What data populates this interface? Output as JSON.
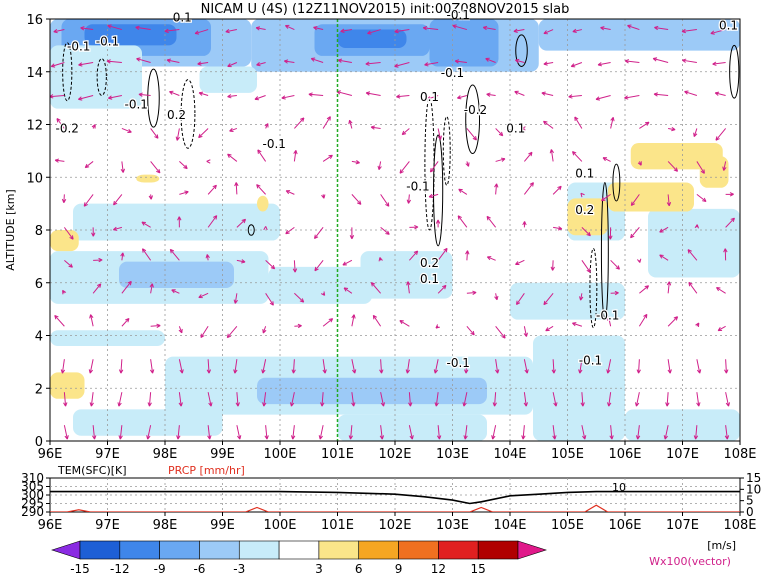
{
  "title": "NICAM U (4S) (12Z11NOV2015) init:00Z08NOV2015 slab",
  "chart_data": [
    {
      "type": "heatmap",
      "title": "NICAM U (4S) (12Z11NOV2015) init:00Z08NOV2015 slab",
      "xlabel": "",
      "ylabel": "ALTITUDE [km]",
      "x_ticks": [
        "96E",
        "97E",
        "98E",
        "99E",
        "100E",
        "101E",
        "102E",
        "103E",
        "104E",
        "105E",
        "106E",
        "107E",
        "108E"
      ],
      "y_ticks": [
        "0",
        "2",
        "4",
        "6",
        "8",
        "10",
        "12",
        "14",
        "16"
      ],
      "xlim": [
        96,
        108
      ],
      "ylim": [
        0,
        16
      ],
      "grid": true,
      "marker_line_lon": 101,
      "contour_labels": [
        {
          "lon": 96.5,
          "alt": 14.8,
          "text": "-0.1"
        },
        {
          "lon": 97.0,
          "alt": 15.0,
          "text": "-0.1"
        },
        {
          "lon": 96.3,
          "alt": 11.7,
          "text": "-0.2"
        },
        {
          "lon": 97.5,
          "alt": 12.6,
          "text": "-0.1"
        },
        {
          "lon": 98.2,
          "alt": 12.2,
          "text": "0.2"
        },
        {
          "lon": 99.9,
          "alt": 11.1,
          "text": "-0.1"
        },
        {
          "lon": 98.3,
          "alt": 15.9,
          "text": "0.1"
        },
        {
          "lon": 102.4,
          "alt": 9.5,
          "text": "-0.1"
        },
        {
          "lon": 103.0,
          "alt": 13.8,
          "text": "-0.1"
        },
        {
          "lon": 102.6,
          "alt": 12.9,
          "text": "0.1"
        },
        {
          "lon": 103.4,
          "alt": 12.4,
          "text": "-0.2"
        },
        {
          "lon": 104.1,
          "alt": 11.7,
          "text": "0.1"
        },
        {
          "lon": 102.6,
          "alt": 6.6,
          "text": "0.2"
        },
        {
          "lon": 102.6,
          "alt": 6.0,
          "text": "0.1"
        },
        {
          "lon": 103.1,
          "alt": 2.8,
          "text": "-0.1"
        },
        {
          "lon": 105.7,
          "alt": 4.6,
          "text": "-0.1"
        },
        {
          "lon": 105.4,
          "alt": 2.9,
          "text": "-0.1"
        },
        {
          "lon": 105.3,
          "alt": 10.0,
          "text": "0.1"
        },
        {
          "lon": 105.3,
          "alt": 8.6,
          "text": "0.2"
        },
        {
          "lon": 103.1,
          "alt": 16.0,
          "text": "-0.1"
        },
        {
          "lon": 107.8,
          "alt": 15.6,
          "text": "0.1"
        }
      ],
      "colorbar": {
        "ticks": [
          "-15",
          "-12",
          "-9",
          "-6",
          "-3",
          "3",
          "6",
          "9",
          "12",
          "15"
        ],
        "unit": "[m/s]",
        "colors": [
          "#8a2be2",
          "#1e5fd6",
          "#3f86ea",
          "#6aa8f2",
          "#9ccaf7",
          "#c8ecf9",
          "#ffffff",
          "#fbe58a",
          "#f5a623",
          "#f07020",
          "#e02020",
          "#b00000",
          "#e0198a"
        ]
      },
      "vector_legend": "Wx100(vector)"
    },
    {
      "type": "line",
      "series": [
        {
          "name": "TEM(SFC)[K]",
          "axis": "left",
          "color": "#000000",
          "x": [
            96,
            97,
            98,
            99,
            100,
            101,
            102,
            102.5,
            103,
            103.3,
            103.5,
            104,
            104.5,
            105,
            105.5,
            106,
            107,
            108
          ],
          "values": [
            302,
            302,
            302,
            302,
            302,
            301.5,
            300.5,
            299,
            297,
            295,
            296,
            299.5,
            300.5,
            301.5,
            302,
            302,
            302,
            302
          ]
        },
        {
          "name": "PRCP [mm/hr]",
          "axis": "right",
          "color": "#e03020",
          "x": [
            96,
            96.3,
            96.5,
            96.7,
            97,
            99,
            99.4,
            99.6,
            99.8,
            100,
            103,
            103.3,
            103.5,
            103.7,
            104,
            105,
            105.3,
            105.5,
            105.7,
            106,
            108
          ],
          "values": [
            0,
            0,
            1,
            0,
            0,
            0,
            0,
            2,
            0,
            0,
            0,
            0,
            2,
            0,
            0,
            0,
            0,
            3,
            0,
            0,
            0
          ]
        }
      ],
      "xlim": [
        96,
        108
      ],
      "left_axis": {
        "label": "TEM(SFC)[K]",
        "ticks": [
          "310",
          "305",
          "300",
          "295",
          "290"
        ],
        "range": [
          290,
          310
        ]
      },
      "right_axis": {
        "label": "PRCP [mm/hr]",
        "ticks": [
          "15",
          "10",
          "5",
          "0"
        ],
        "range": [
          0,
          15
        ]
      },
      "annotation": "10",
      "x_ticks": [
        "96E",
        "97E",
        "98E",
        "99E",
        "100E",
        "101E",
        "102E",
        "103E",
        "104E",
        "105E",
        "106E",
        "107E",
        "108E"
      ]
    }
  ]
}
